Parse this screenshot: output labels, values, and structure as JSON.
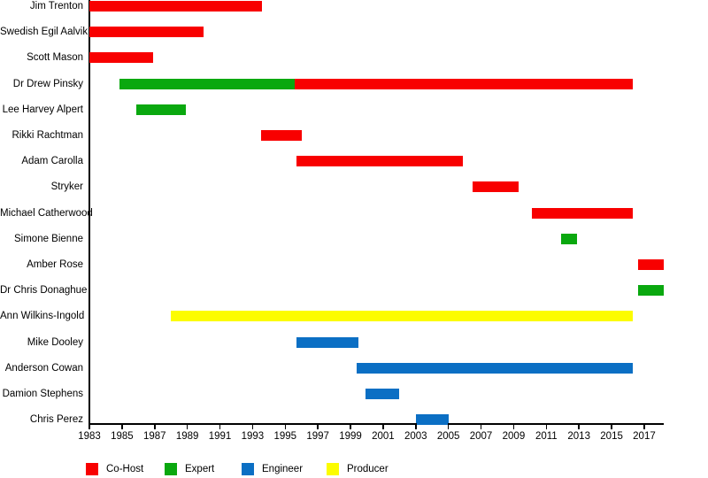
{
  "chart_data": {
    "type": "bar",
    "subtype": "gantt-timeline",
    "title": "",
    "xlabel": "",
    "ylabel": "",
    "grid": false,
    "legend_position": "bottom",
    "x_axis": {
      "min": 1983,
      "max": 2018.25,
      "ticks": [
        1983,
        1985,
        1987,
        1989,
        1991,
        1993,
        1995,
        1997,
        1999,
        2001,
        2003,
        2005,
        2007,
        2009,
        2011,
        2013,
        2015,
        2017
      ]
    },
    "role_colors": {
      "Co-Host": "#f80000",
      "Expert": "#0aa80f",
      "Engineer": "#0b6fc4",
      "Producer": "#fcfc00"
    },
    "legend": [
      {
        "label": "Co-Host",
        "color": "#f80000"
      },
      {
        "label": "Expert",
        "color": "#0aa80f"
      },
      {
        "label": "Engineer",
        "color": "#0b6fc4"
      },
      {
        "label": "Producer",
        "color": "#fcfc00"
      }
    ],
    "rows": [
      {
        "name": "Jim Trenton",
        "segments": [
          {
            "role": "Co-Host",
            "start": 1983,
            "end": 1993.6
          }
        ]
      },
      {
        "name": "Swedish Egil Aalvik",
        "segments": [
          {
            "role": "Co-Host",
            "start": 1983,
            "end": 1990
          }
        ]
      },
      {
        "name": "Scott Mason",
        "segments": [
          {
            "role": "Co-Host",
            "start": 1983,
            "end": 1986.9
          }
        ]
      },
      {
        "name": "Dr Drew Pinsky",
        "segments": [
          {
            "role": "Expert",
            "start": 1984.85,
            "end": 1995.6
          },
          {
            "role": "Co-Host",
            "start": 1995.6,
            "end": 2016.3
          }
        ]
      },
      {
        "name": "Lee Harvey Alpert",
        "segments": [
          {
            "role": "Expert",
            "start": 1985.9,
            "end": 1988.9
          }
        ]
      },
      {
        "name": "Rikki Rachtman",
        "segments": [
          {
            "role": "Co-Host",
            "start": 1993.5,
            "end": 1996
          }
        ]
      },
      {
        "name": "Adam Carolla",
        "segments": [
          {
            "role": "Co-Host",
            "start": 1995.7,
            "end": 2005.9
          }
        ]
      },
      {
        "name": "Stryker",
        "segments": [
          {
            "role": "Co-Host",
            "start": 2006.5,
            "end": 2009.3
          }
        ]
      },
      {
        "name": "Michael Catherwood",
        "segments": [
          {
            "role": "Co-Host",
            "start": 2010.1,
            "end": 2016.3
          }
        ]
      },
      {
        "name": "Simone Bienne",
        "segments": [
          {
            "role": "Expert",
            "start": 2011.9,
            "end": 2012.9
          }
        ]
      },
      {
        "name": "Amber Rose",
        "segments": [
          {
            "role": "Co-Host",
            "start": 2016.6,
            "end": 2018.2
          }
        ]
      },
      {
        "name": "Dr Chris Donaghue",
        "segments": [
          {
            "role": "Expert",
            "start": 2016.6,
            "end": 2018.2
          }
        ]
      },
      {
        "name": "Ann Wilkins-Ingold",
        "segments": [
          {
            "role": "Producer",
            "start": 1988,
            "end": 2016.3
          }
        ]
      },
      {
        "name": "Mike Dooley",
        "segments": [
          {
            "role": "Engineer",
            "start": 1995.7,
            "end": 1999.5
          }
        ]
      },
      {
        "name": "Anderson Cowan",
        "segments": [
          {
            "role": "Engineer",
            "start": 1999.4,
            "end": 2016.3
          }
        ]
      },
      {
        "name": "Damion Stephens",
        "segments": [
          {
            "role": "Engineer",
            "start": 1999.9,
            "end": 2002
          }
        ]
      },
      {
        "name": "Chris Perez",
        "segments": [
          {
            "role": "Engineer",
            "start": 2003,
            "end": 2005
          }
        ]
      }
    ]
  }
}
